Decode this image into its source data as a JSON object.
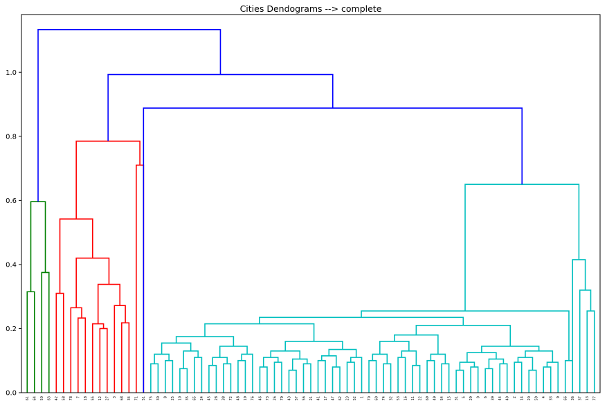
{
  "chart_data": {
    "type": "dendrogram",
    "title": "Cities Dendograms --> complete",
    "xlabel": "",
    "ylabel": "",
    "ylim": [
      0,
      1.18
    ],
    "yticks": [
      "0.0",
      "0.2",
      "0.4",
      "0.6",
      "0.8",
      "1.0"
    ],
    "grid": false,
    "leaf_labels": [
      "61",
      "64",
      "50",
      "63",
      "42",
      "58",
      "78",
      "7",
      "18",
      "55",
      "12",
      "27",
      "3",
      "68",
      "34",
      "71",
      "51",
      "75",
      "30",
      "8",
      "25",
      "10",
      "35",
      "65",
      "24",
      "45",
      "28",
      "38",
      "72",
      "48",
      "19",
      "76",
      "46",
      "73",
      "26",
      "79",
      "43",
      "57",
      "56",
      "21",
      "41",
      "17",
      "47",
      "62",
      "23",
      "52",
      "1",
      "70",
      "60",
      "74",
      "32",
      "53",
      "16",
      "11",
      "22",
      "69",
      "49",
      "54",
      "15",
      "31",
      "5",
      "29",
      "0",
      "6",
      "39",
      "44",
      "40",
      "2",
      "14",
      "20",
      "59",
      "4",
      "33",
      "9",
      "66",
      "36",
      "37",
      "13",
      "77"
    ],
    "colors": {
      "green": "#008000",
      "red": "#ff0000",
      "cyan": "#00bfbf",
      "blue": "#0000ff",
      "frame": "#000000"
    },
    "merges": [
      {
        "left": "61",
        "right": "64",
        "height": 0.315,
        "color": "green"
      },
      {
        "left": "50",
        "right": "63",
        "height": 0.375,
        "color": "green"
      },
      {
        "left": "61-64",
        "right": "50-63",
        "height": 0.596,
        "color": "green"
      },
      {
        "left": "42",
        "right": "58",
        "height": 0.31,
        "color": "red"
      },
      {
        "left": "7",
        "right": "18",
        "height": 0.233,
        "color": "red"
      },
      {
        "left": "78",
        "right": "7-18",
        "height": 0.265,
        "color": "red"
      },
      {
        "left": "12",
        "right": "27",
        "height": 0.2,
        "color": "red"
      },
      {
        "left": "68",
        "right": "34",
        "height": 0.218,
        "color": "red"
      },
      {
        "left": "3",
        "right": "68-34",
        "height": 0.272,
        "color": "red"
      },
      {
        "left": "12-27",
        "right": "3-68-34",
        "height": 0.338,
        "color": "red"
      },
      {
        "left": "78-7-18",
        "right": "12-27-3-68-34",
        "height": 0.42,
        "color": "red"
      },
      {
        "left": "42-58",
        "right": "78-…-34",
        "height": 0.542,
        "color": "red"
      },
      {
        "left": "71",
        "right": "51",
        "height": 0.71,
        "color": "red"
      },
      {
        "left": "42-…-34",
        "right": "71-51",
        "height": 0.785,
        "color": "red"
      },
      {
        "left": "large cyan cluster",
        "right": "36-37-13-77 cluster",
        "height": 0.65,
        "color": "cyan"
      },
      {
        "left": "75-…",
        "right": "…-66",
        "height": 0.285,
        "color": "cyan"
      },
      {
        "left": "cyan cluster",
        "right": "rest",
        "height": 0.888,
        "color": "blue"
      },
      {
        "left": "red cluster",
        "right": "…",
        "height": 0.993,
        "color": "blue"
      },
      {
        "left": "green cluster",
        "right": "…",
        "height": 1.133,
        "color": "blue"
      }
    ]
  }
}
